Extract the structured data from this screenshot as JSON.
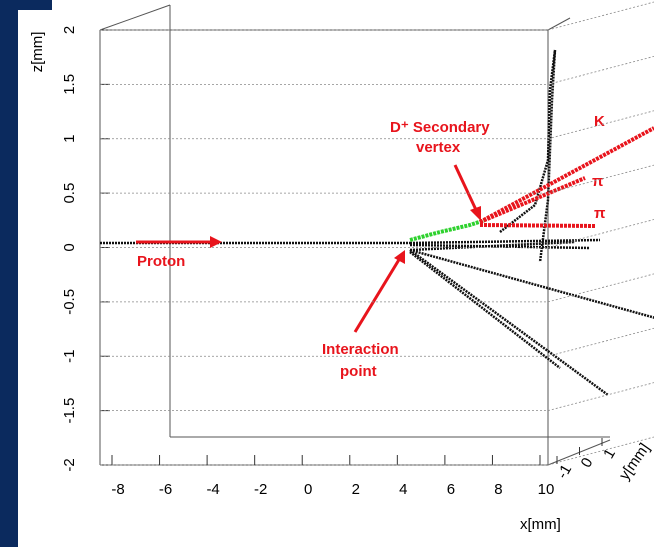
{
  "chart_data": {
    "type": "event-display",
    "x_label": "x[mm]",
    "y_label": "y[mm]",
    "z_label": "z[mm]",
    "xlim": [
      -8,
      10
    ],
    "xticks": [
      -8,
      -6,
      -4,
      -2,
      0,
      2,
      4,
      6,
      8,
      10
    ],
    "ylim": [
      -1,
      1
    ],
    "yticks": [
      -1,
      0,
      1
    ],
    "zlim": [
      -2,
      2
    ],
    "zticks": [
      2,
      1.5,
      1,
      0.5,
      0,
      -0.5,
      -1,
      -1.5,
      -2
    ],
    "annotations": {
      "secondary_vertex": [
        "D⁺ Secondary",
        "vertex"
      ],
      "kaon": "K",
      "pion_1": "π",
      "pion_2": "π",
      "proton": "Proton",
      "interaction_point": [
        "Interaction",
        "point"
      ]
    }
  }
}
